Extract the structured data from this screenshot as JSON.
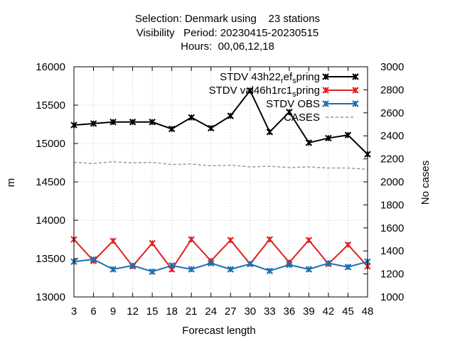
{
  "chart_data": {
    "type": "line",
    "title_lines": [
      "Selection: Denmark using    23 stations",
      "Visibility   Period: 20230415-20230515",
      "Hours:  00,06,12,18"
    ],
    "xlabel": "Forecast length",
    "ylabel": "m",
    "y2label": "No cases",
    "x": [
      3,
      6,
      9,
      12,
      15,
      18,
      21,
      24,
      27,
      30,
      33,
      36,
      39,
      42,
      45,
      48
    ],
    "ylim": [
      13000,
      16000
    ],
    "yticks": [
      13000,
      13500,
      14000,
      14500,
      15000,
      15500,
      16000
    ],
    "y2lim": [
      1000,
      3000
    ],
    "y2ticks": [
      1000,
      1200,
      1400,
      1600,
      1800,
      2000,
      2200,
      2400,
      2600,
      2800,
      3000
    ],
    "grid": true,
    "legend_position": "top-right",
    "series": [
      {
        "name": "STDV 43h22 ref spring",
        "legend_parts": [
          "STDV 43h22",
          "r",
          "ef",
          "s",
          "pring"
        ],
        "color": "#000000",
        "marker": "x",
        "axis": "y1",
        "values": [
          15240,
          15260,
          15280,
          15280,
          15280,
          15190,
          15340,
          15200,
          15360,
          15690,
          15150,
          15410,
          15010,
          15070,
          15110,
          14860
        ]
      },
      {
        "name": "STDV val46h1rc1 spring",
        "legend_parts": [
          "STDV val46h1rc1",
          "s",
          "pring"
        ],
        "color": "#e02020",
        "marker": "x",
        "axis": "y1",
        "values": [
          13750,
          13470,
          13730,
          13400,
          13700,
          13360,
          13750,
          13470,
          13740,
          13430,
          13750,
          13450,
          13740,
          13430,
          13680,
          13400
        ]
      },
      {
        "name": "STDV OBS",
        "legend_parts": [
          "STDV OBS"
        ],
        "color": "#1a6fb0",
        "marker": "x",
        "axis": "y1",
        "values": [
          13460,
          13490,
          13360,
          13410,
          13330,
          13410,
          13360,
          13440,
          13360,
          13430,
          13340,
          13420,
          13360,
          13440,
          13390,
          13460
        ]
      },
      {
        "name": "CASES",
        "legend_parts": [
          "CASES"
        ],
        "color": "#999999",
        "dashed": true,
        "axis": "y2",
        "values": [
          2170,
          2160,
          2175,
          2165,
          2170,
          2150,
          2155,
          2140,
          2145,
          2130,
          2135,
          2125,
          2130,
          2120,
          2120,
          2110
        ]
      }
    ]
  }
}
